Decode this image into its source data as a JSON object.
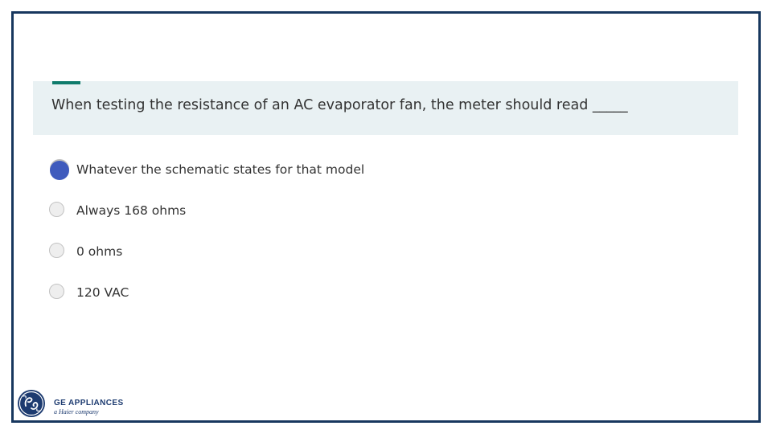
{
  "question": {
    "text": "When testing the resistance of an AC evaporator fan, the meter should read _____"
  },
  "options": [
    {
      "label": "Whatever the schematic states for that model",
      "selected": true
    },
    {
      "label": "Always 168 ohms",
      "selected": false
    },
    {
      "label": "0 ohms",
      "selected": false
    },
    {
      "label": "120 VAC",
      "selected": false
    }
  ],
  "logo": {
    "name": "GE APPLIANCES",
    "tagline": "a Haier company",
    "icon": "ge-monogram-icon"
  },
  "colors": {
    "frame_border": "#17375e",
    "question_bg": "#e9f1f3",
    "accent": "#0f7b6c",
    "selected_radio": "#3f5bbd",
    "brand": "#1d3b70"
  }
}
